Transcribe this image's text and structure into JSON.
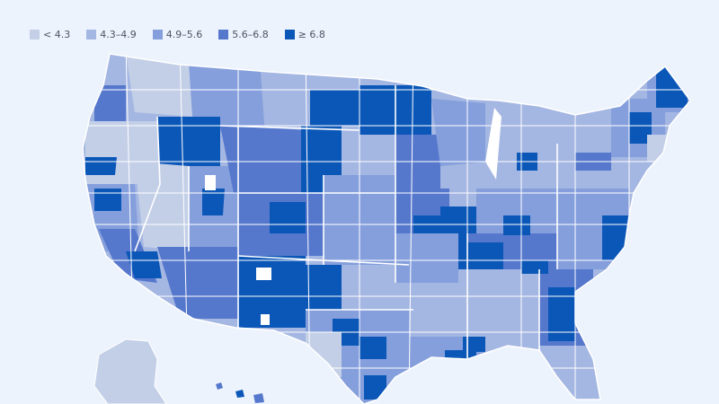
{
  "legend": {
    "items": [
      {
        "label": "< 4.3",
        "color": "#c3cfe7"
      },
      {
        "label": "4.3–4.9",
        "color": "#a4b6e2"
      },
      {
        "label": "4.9–5.6",
        "color": "#859fdc"
      },
      {
        "label": "5.6–6.8",
        "color": "#5577cc"
      },
      {
        "label": "≥ 6.8",
        "color": "#0b57b8"
      }
    ]
  },
  "map": {
    "background": "#edf3fc",
    "border_color": "#ffffff"
  }
}
